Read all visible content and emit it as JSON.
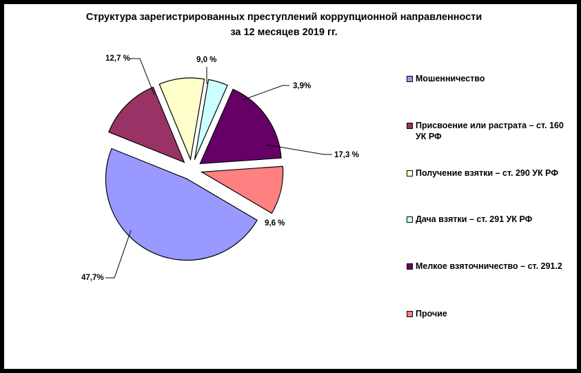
{
  "title_line1": "Структура зарегистрированных преступлений коррупционной направленности",
  "title_line2": "за 12 месяцев 2019 гг.",
  "chart_data": {
    "type": "pie",
    "exploded": true,
    "title": "Структура зарегистрированных преступлений коррупционной направленности за 12 месяцев 2019 гг.",
    "legend_position": "right",
    "slices": [
      {
        "name": "Мошенничество",
        "value": 47.7,
        "label": "47,7%",
        "color": "#9999ff"
      },
      {
        "name": "Присвоение или растрата – ст. 160 УК РФ",
        "value": 12.7,
        "label": "12,7 %",
        "color": "#993366"
      },
      {
        "name": "Получение взятки – ст. 290 УК РФ",
        "value": 9.0,
        "label": "9,0 %",
        "color": "#ffffcc"
      },
      {
        "name": "Дача взятки – ст. 291 УК РФ",
        "value": 3.9,
        "label": "3,9%",
        "color": "#ccffff"
      },
      {
        "name": "Мелкое взяточничество – ст. 291.2",
        "value": 17.3,
        "label": "17,3 %",
        "color": "#660066"
      },
      {
        "name": "Прочие",
        "value": 9.6,
        "label": "9,6 %",
        "color": "#ff8080"
      }
    ]
  }
}
